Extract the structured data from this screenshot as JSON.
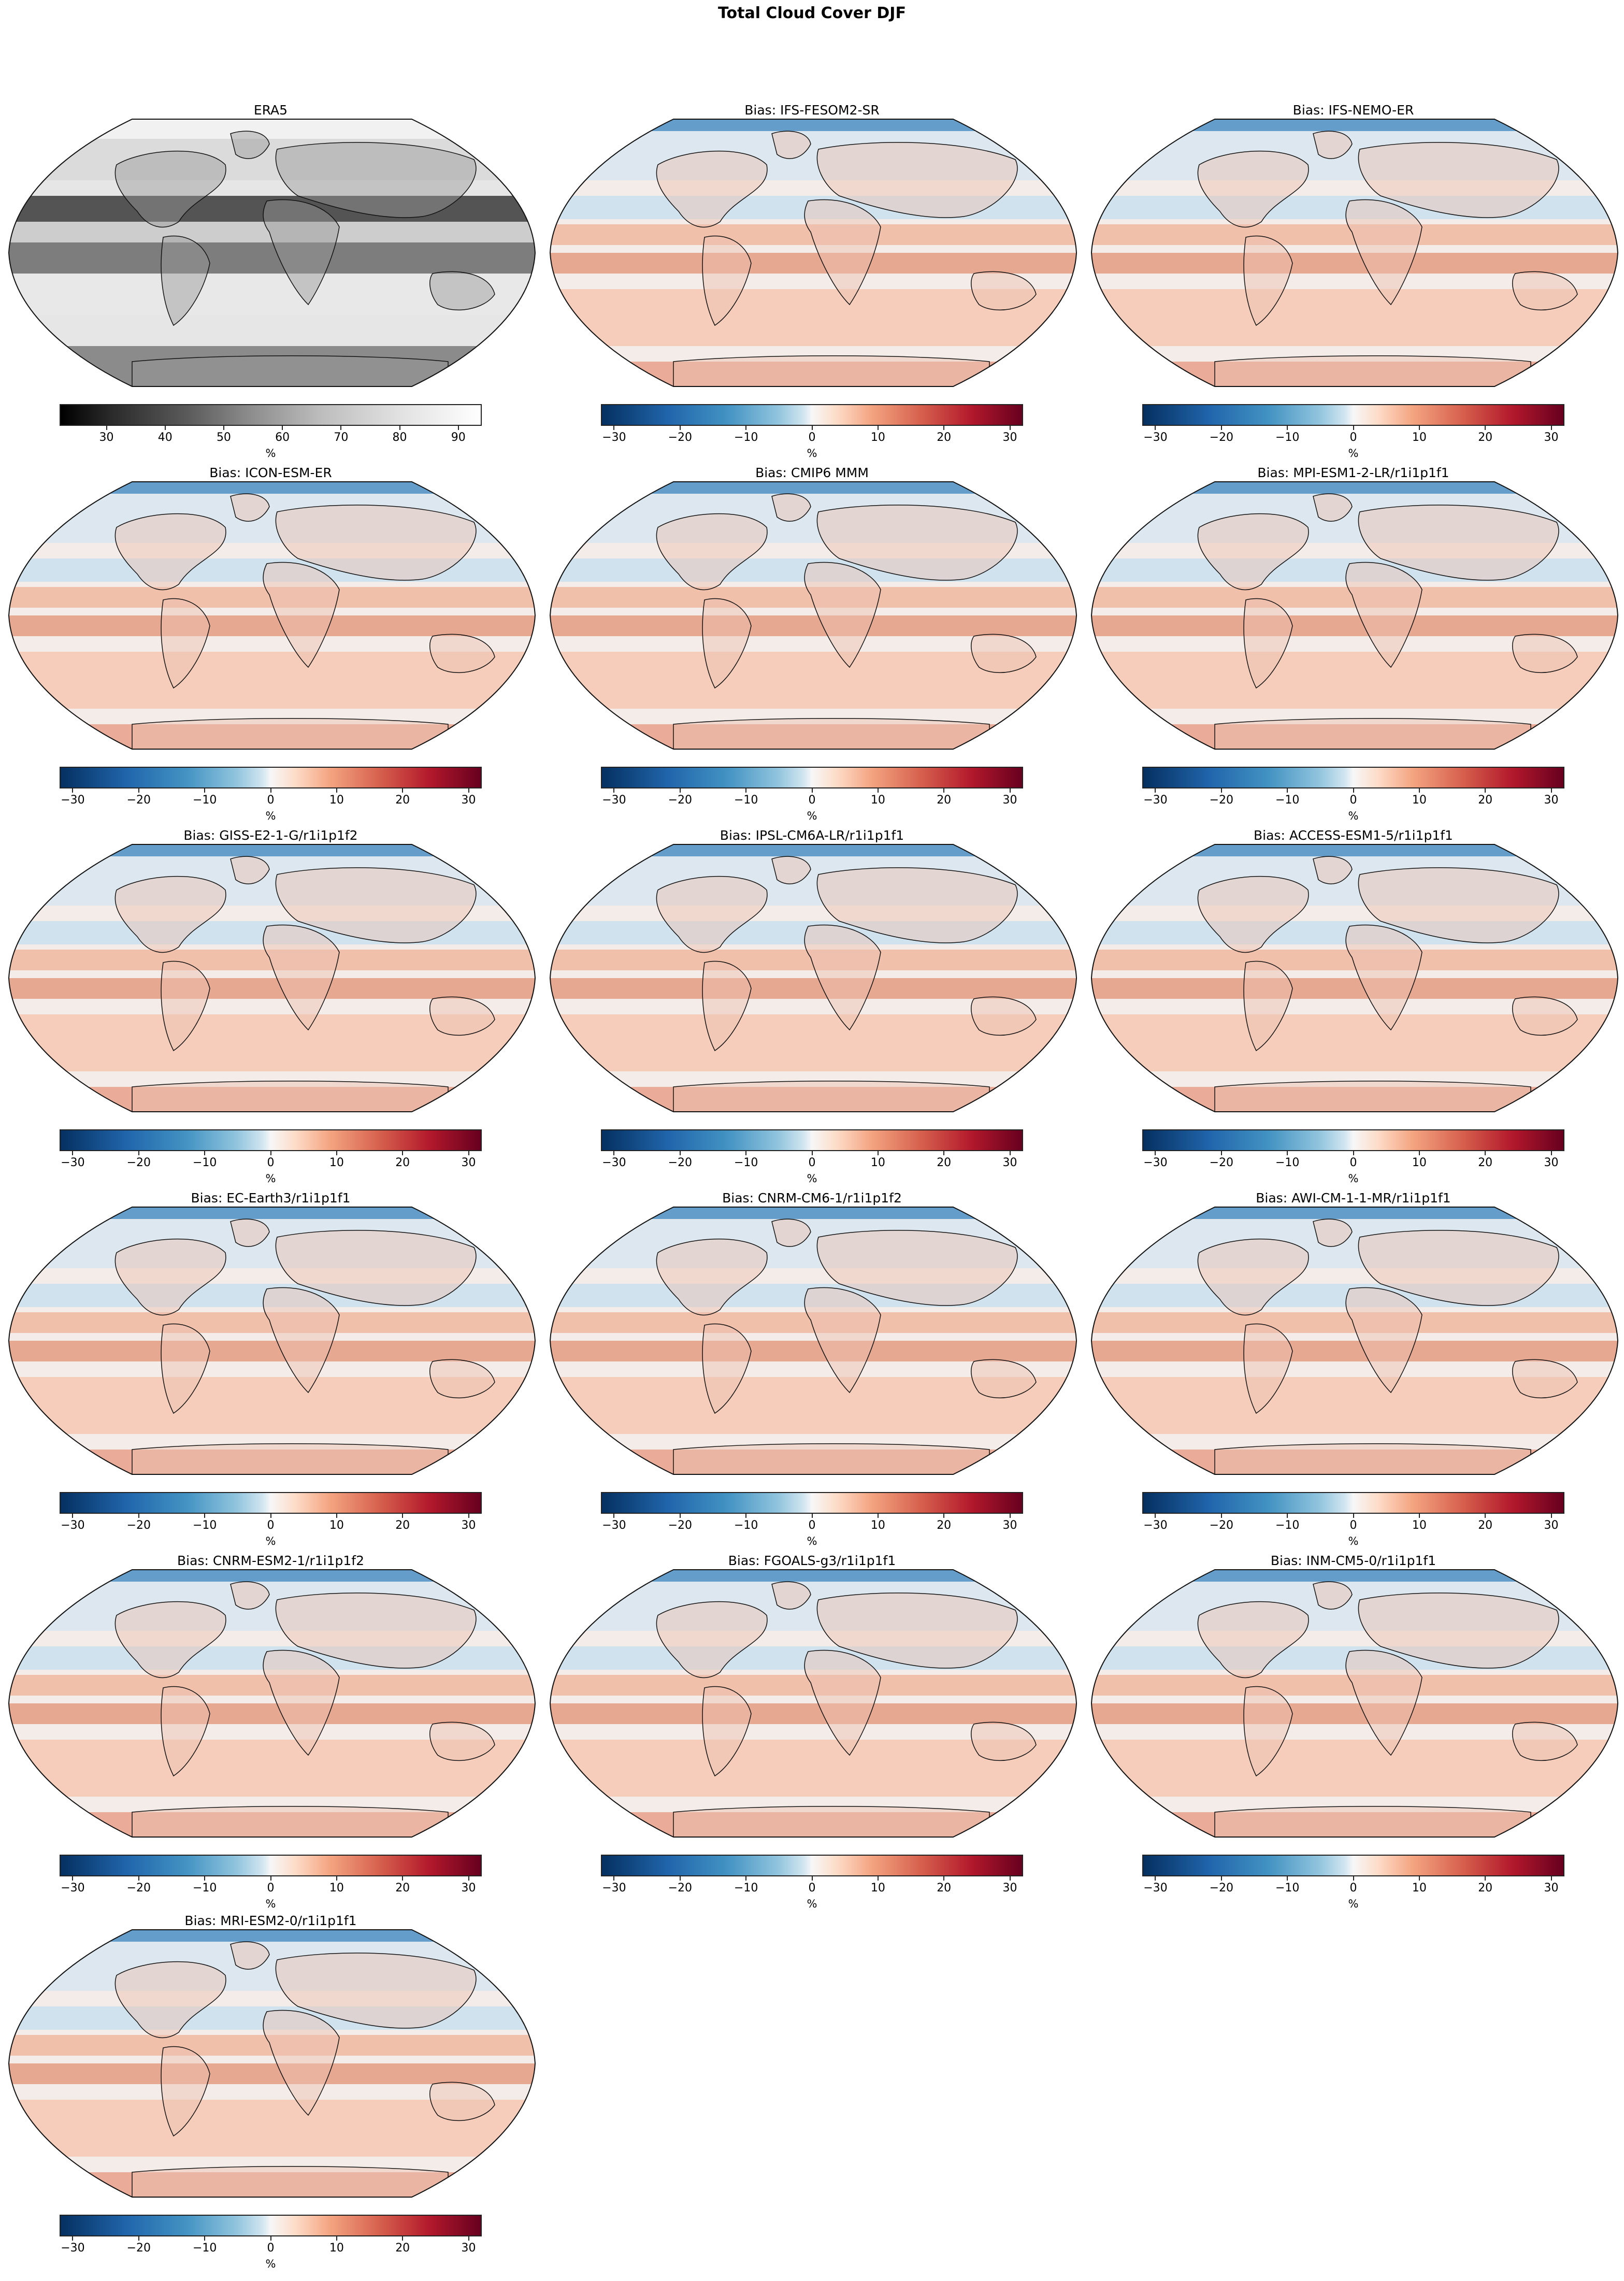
{
  "figure": {
    "title": "Total Cloud Cover DJF"
  },
  "colorbars": {
    "era5": {
      "ticks": [
        "30",
        "40",
        "50",
        "60",
        "70",
        "80",
        "90"
      ],
      "range": [
        22,
        94
      ],
      "unit": "%",
      "cmap": "greys_r"
    },
    "bias": {
      "ticks": [
        "−30",
        "−20",
        "−10",
        "0",
        "10",
        "20",
        "30"
      ],
      "range": [
        -32,
        32
      ],
      "unit": "%",
      "cmap": "RdBu_r"
    }
  },
  "panels": [
    {
      "title": "ERA5",
      "kind": "era5"
    },
    {
      "title": "Bias: IFS-FESOM2-SR",
      "kind": "bias"
    },
    {
      "title": "Bias: IFS-NEMO-ER",
      "kind": "bias"
    },
    {
      "title": "Bias: ICON-ESM-ER",
      "kind": "bias"
    },
    {
      "title": "Bias: CMIP6 MMM",
      "kind": "bias"
    },
    {
      "title": "Bias: MPI-ESM1-2-LR/r1i1p1f1",
      "kind": "bias"
    },
    {
      "title": "Bias: GISS-E2-1-G/r1i1p1f2",
      "kind": "bias"
    },
    {
      "title": "Bias: IPSL-CM6A-LR/r1i1p1f1",
      "kind": "bias"
    },
    {
      "title": "Bias: ACCESS-ESM1-5/r1i1p1f1",
      "kind": "bias"
    },
    {
      "title": "Bias: EC-Earth3/r1i1p1f1",
      "kind": "bias"
    },
    {
      "title": "Bias: CNRM-CM6-1/r1i1p1f2",
      "kind": "bias"
    },
    {
      "title": "Bias: AWI-CM-1-1-MR/r1i1p1f1",
      "kind": "bias"
    },
    {
      "title": "Bias: CNRM-ESM2-1/r1i1p1f2",
      "kind": "bias"
    },
    {
      "title": "Bias: FGOALS-g3/r1i1p1f1",
      "kind": "bias"
    },
    {
      "title": "Bias: INM-CM5-0/r1i1p1f1",
      "kind": "bias"
    },
    {
      "title": "Bias: MRI-ESM2-0/r1i1p1f1",
      "kind": "bias"
    }
  ],
  "chart_data": {
    "type": "heatmap",
    "title": "Total Cloud Cover DJF",
    "projection": "Robinson (global maps with coastlines)",
    "layout": {
      "rows": 6,
      "cols": 3,
      "n_panels": 16
    },
    "panels": [
      {
        "title": "ERA5",
        "colorbar": {
          "label": "%",
          "ticks": [
            30,
            40,
            50,
            60,
            70,
            80,
            90
          ],
          "vmin": 22,
          "vmax": 94,
          "cmap": "grey"
        }
      },
      {
        "title": "Bias: IFS-FESOM2-SR",
        "colorbar": {
          "label": "%",
          "ticks": [
            -30,
            -20,
            -10,
            0,
            10,
            20,
            30
          ],
          "vmin": -32,
          "vmax": 32,
          "cmap": "RdBu_r"
        }
      },
      {
        "title": "Bias: IFS-NEMO-ER",
        "colorbar": {
          "label": "%",
          "ticks": [
            -30,
            -20,
            -10,
            0,
            10,
            20,
            30
          ],
          "vmin": -32,
          "vmax": 32,
          "cmap": "RdBu_r"
        }
      },
      {
        "title": "Bias: ICON-ESM-ER",
        "colorbar": {
          "label": "%",
          "ticks": [
            -30,
            -20,
            -10,
            0,
            10,
            20,
            30
          ],
          "vmin": -32,
          "vmax": 32,
          "cmap": "RdBu_r"
        }
      },
      {
        "title": "Bias: CMIP6 MMM",
        "colorbar": {
          "label": "%",
          "ticks": [
            -30,
            -20,
            -10,
            0,
            10,
            20,
            30
          ],
          "vmin": -32,
          "vmax": 32,
          "cmap": "RdBu_r"
        }
      },
      {
        "title": "Bias: MPI-ESM1-2-LR/r1i1p1f1",
        "colorbar": {
          "label": "%",
          "ticks": [
            -30,
            -20,
            -10,
            0,
            10,
            20,
            30
          ],
          "vmin": -32,
          "vmax": 32,
          "cmap": "RdBu_r"
        }
      },
      {
        "title": "Bias: GISS-E2-1-G/r1i1p1f2",
        "colorbar": {
          "label": "%",
          "ticks": [
            -30,
            -20,
            -10,
            0,
            10,
            20,
            30
          ],
          "vmin": -32,
          "vmax": 32,
          "cmap": "RdBu_r"
        }
      },
      {
        "title": "Bias: IPSL-CM6A-LR/r1i1p1f1",
        "colorbar": {
          "label": "%",
          "ticks": [
            -30,
            -20,
            -10,
            0,
            10,
            20,
            30
          ],
          "vmin": -32,
          "vmax": 32,
          "cmap": "RdBu_r"
        }
      },
      {
        "title": "Bias: ACCESS-ESM1-5/r1i1p1f1",
        "colorbar": {
          "label": "%",
          "ticks": [
            -30,
            -20,
            -10,
            0,
            10,
            20,
            30
          ],
          "vmin": -32,
          "vmax": 32,
          "cmap": "RdBu_r"
        }
      },
      {
        "title": "Bias: EC-Earth3/r1i1p1f1",
        "colorbar": {
          "label": "%",
          "ticks": [
            -30,
            -20,
            -10,
            0,
            10,
            20,
            30
          ],
          "vmin": -32,
          "vmax": 32,
          "cmap": "RdBu_r"
        }
      },
      {
        "title": "Bias: CNRM-CM6-1/r1i1p1f2",
        "colorbar": {
          "label": "%",
          "ticks": [
            -30,
            -20,
            -10,
            0,
            10,
            20,
            30
          ],
          "vmin": -32,
          "vmax": 32,
          "cmap": "RdBu_r"
        }
      },
      {
        "title": "Bias: AWI-CM-1-1-MR/r1i1p1f1",
        "colorbar": {
          "label": "%",
          "ticks": [
            -30,
            -20,
            -10,
            0,
            10,
            20,
            30
          ],
          "vmin": -32,
          "vmax": 32,
          "cmap": "RdBu_r"
        }
      },
      {
        "title": "Bias: CNRM-ESM2-1/r1i1p1f2",
        "colorbar": {
          "label": "%",
          "ticks": [
            -30,
            -20,
            -10,
            0,
            10,
            20,
            30
          ],
          "vmin": -32,
          "vmax": 32,
          "cmap": "RdBu_r"
        }
      },
      {
        "title": "Bias: FGOALS-g3/r1i1p1f1",
        "colorbar": {
          "label": "%",
          "ticks": [
            -30,
            -20,
            -10,
            0,
            10,
            20,
            30
          ],
          "vmin": -32,
          "vmax": 32,
          "cmap": "RdBu_r"
        }
      },
      {
        "title": "Bias: INM-CM5-0/r1i1p1f1",
        "colorbar": {
          "label": "%",
          "ticks": [
            -30,
            -20,
            -10,
            0,
            10,
            20,
            30
          ],
          "vmin": -32,
          "vmax": 32,
          "cmap": "RdBu_r"
        }
      },
      {
        "title": "Bias: MRI-ESM2-0/r1i1p1f1",
        "colorbar": {
          "label": "%",
          "ticks": [
            -30,
            -20,
            -10,
            0,
            10,
            20,
            30
          ],
          "vmin": -32,
          "vmax": 32,
          "cmap": "RdBu_r"
        }
      }
    ]
  }
}
